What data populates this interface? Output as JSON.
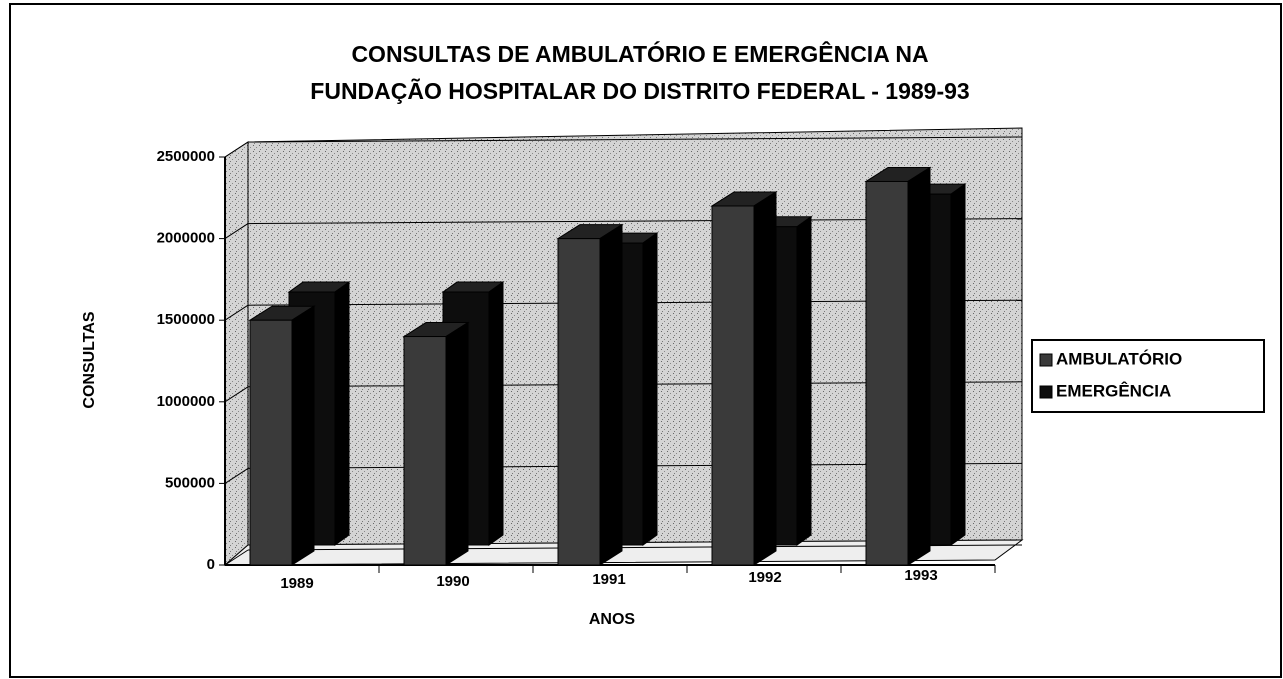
{
  "chart_data": {
    "type": "bar",
    "title": [
      "CONSULTAS DE AMBULATÓRIO E EMERGÊNCIA NA",
      "FUNDAÇÃO HOSPITALAR DO DISTRITO FEDERAL - 1989-93"
    ],
    "x_label": "ANOS",
    "y_label": "CONSULTAS",
    "categories": [
      "1989",
      "1990",
      "1991",
      "1992",
      "1993"
    ],
    "series": [
      {
        "name": "AMBULATÓRIO",
        "color": "#3a3a3a",
        "values": [
          1500000,
          1400000,
          2000000,
          2200000,
          2350000
        ]
      },
      {
        "name": "EMERGÊNCIA",
        "color": "#0d0d0d",
        "values": [
          1550000,
          1550000,
          1850000,
          1950000,
          2150000
        ]
      }
    ],
    "ylim": [
      0,
      2500000
    ],
    "yticks": [
      0,
      500000,
      1000000,
      1500000,
      2000000,
      2500000
    ],
    "grid": true,
    "legend": "right"
  }
}
